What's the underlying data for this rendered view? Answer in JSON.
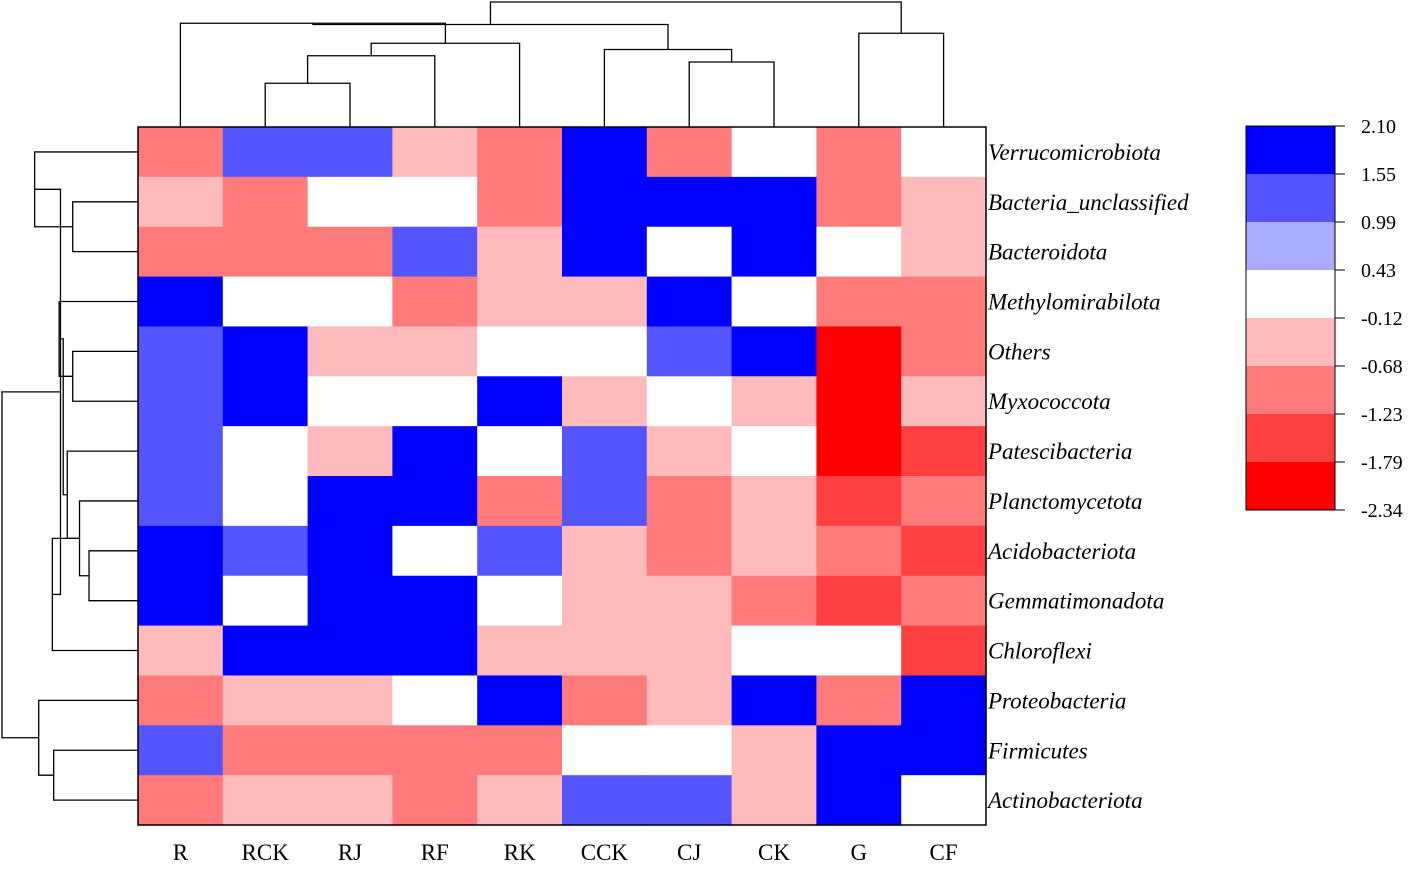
{
  "chart_data": {
    "type": "heatmap",
    "title": "",
    "columns": [
      "R",
      "RCK",
      "RJ",
      "RF",
      "RK",
      "CCK",
      "CJ",
      "CK",
      "G",
      "CF"
    ],
    "rows": [
      "Verrucomicrobiota",
      "Bacteria_unclassified",
      "Bacteroidota",
      "Methylomirabilota",
      "Others",
      "Myxococcota",
      "Patescibacteria",
      "Planctomycetota",
      "Acidobacteriota",
      "Gemmatimonadota",
      "Chloroflexi",
      "Proteobacteria",
      "Firmicutes",
      "Actinobacteriota"
    ],
    "values": [
      [
        -1.23,
        0.99,
        0.99,
        -0.68,
        -1.23,
        2.1,
        -1.23,
        -0.12,
        -1.23,
        -0.12
      ],
      [
        -0.68,
        -1.23,
        -0.12,
        -0.12,
        -1.23,
        1.55,
        1.55,
        1.55,
        -1.23,
        -0.68
      ],
      [
        -1.23,
        -1.23,
        -1.23,
        0.99,
        -0.68,
        2.1,
        -0.12,
        1.55,
        -0.12,
        -0.68
      ],
      [
        2.1,
        -0.12,
        -0.12,
        -1.23,
        -0.68,
        -0.68,
        1.55,
        -0.12,
        -1.23,
        -1.23
      ],
      [
        0.99,
        1.55,
        -0.68,
        -0.68,
        -0.12,
        -0.12,
        0.99,
        1.55,
        -2.34,
        -1.23
      ],
      [
        0.99,
        1.55,
        -0.12,
        -0.12,
        1.55,
        -0.68,
        -0.12,
        -0.68,
        -2.34,
        -0.68
      ],
      [
        0.99,
        -0.12,
        -0.68,
        2.1,
        -0.12,
        0.99,
        -0.68,
        -0.12,
        -2.34,
        -1.79
      ],
      [
        0.99,
        -0.12,
        1.55,
        1.55,
        -1.23,
        0.99,
        -1.23,
        -0.68,
        -1.79,
        -1.23
      ],
      [
        1.55,
        0.99,
        1.55,
        -0.12,
        0.99,
        -0.68,
        -1.23,
        -0.68,
        -1.23,
        -1.79
      ],
      [
        1.55,
        -0.12,
        1.55,
        1.55,
        -0.12,
        -0.68,
        -0.68,
        -1.23,
        -1.79,
        -1.23
      ],
      [
        -0.68,
        1.55,
        1.55,
        1.55,
        -0.68,
        -0.68,
        -0.68,
        -0.12,
        -0.12,
        -1.79
      ],
      [
        -1.23,
        -0.68,
        -0.68,
        -0.12,
        1.55,
        -1.23,
        -0.68,
        1.55,
        -1.23,
        1.55
      ],
      [
        0.99,
        -1.23,
        -1.23,
        -1.23,
        -1.23,
        -0.12,
        -0.12,
        -0.68,
        1.55,
        2.1
      ],
      [
        -1.23,
        -0.68,
        -0.68,
        -1.23,
        -0.68,
        0.99,
        0.99,
        -0.68,
        2.1,
        -0.12
      ]
    ],
    "legend": {
      "placement": "right",
      "ticks": [
        "2.10",
        "1.55",
        "0.99",
        "0.43",
        "-0.12",
        "-0.68",
        "-1.23",
        "-1.79",
        "-2.34"
      ],
      "bins": [
        {
          "min": 1.55,
          "max": 2.1,
          "color": "#0000ff"
        },
        {
          "min": 0.99,
          "max": 1.55,
          "color": "#5555ff"
        },
        {
          "min": 0.43,
          "max": 0.99,
          "color": "#aaaaff"
        },
        {
          "min": -0.12,
          "max": 0.43,
          "color": "#ffffff"
        },
        {
          "min": -0.68,
          "max": -0.12,
          "color": "#ffbbbb"
        },
        {
          "min": -1.23,
          "max": -0.68,
          "color": "#ff7b7b"
        },
        {
          "min": -1.79,
          "max": -1.23,
          "color": "#ff4040"
        },
        {
          "min": -2.34,
          "max": -1.79,
          "color": "#ff0000"
        }
      ]
    },
    "column_dendrogram": {
      "leaf_order": [
        "R",
        "RCK",
        "RJ",
        "RF",
        "RK",
        "CCK",
        "CJ",
        "CK",
        "G",
        "CF"
      ],
      "merges": [
        [
          1,
          2,
          0.35
        ],
        [
          -1,
          3,
          0.57
        ],
        [
          -2,
          4,
          0.67
        ],
        [
          0,
          -3,
          0.83
        ],
        [
          6,
          7,
          0.52
        ],
        [
          5,
          -5,
          0.62
        ],
        [
          -4,
          -6,
          0.82
        ],
        [
          8,
          9,
          0.75
        ],
        [
          -7,
          -8,
          1.0
        ]
      ]
    },
    "row_dendrogram": {
      "leaf_order": [
        "Verrucomicrobiota",
        "Bacteria_unclassified",
        "Bacteroidota",
        "Methylomirabilota",
        "Others",
        "Myxococcota",
        "Patescibacteria",
        "Planctomycetota",
        "Acidobacteriota",
        "Gemmatimonadota",
        "Chloroflexi",
        "Proteobacteria",
        "Firmicutes",
        "Actinobacteriota"
      ],
      "merges": [
        [
          1,
          2,
          0.48
        ],
        [
          0,
          -1,
          0.76
        ],
        [
          4,
          5,
          0.48
        ],
        [
          3,
          -3,
          0.58
        ],
        [
          8,
          9,
          0.36
        ],
        [
          7,
          -5,
          0.43
        ],
        [
          6,
          -6,
          0.52
        ],
        [
          -6,
          10,
          0.63
        ],
        [
          -4,
          -7,
          0.55
        ],
        [
          -2,
          -8,
          0.57
        ],
        [
          12,
          13,
          0.62
        ],
        [
          11,
          -11,
          0.73
        ],
        [
          -10,
          -12,
          1.0
        ]
      ]
    }
  }
}
